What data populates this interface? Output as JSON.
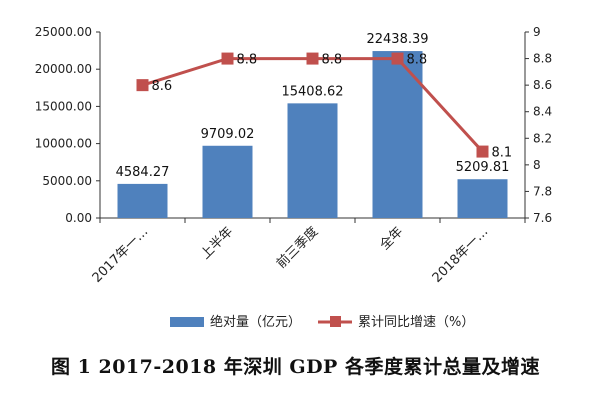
{
  "caption": "图 1   2017-2018 年深圳 GDP 各季度累计总量及增速",
  "chart_data": {
    "type": "bar+line",
    "categories": [
      "2017年一…",
      "上半年",
      "前三季度",
      "全年",
      "2018年一…"
    ],
    "series": [
      {
        "name": "绝对量（亿元）",
        "type": "bar",
        "axis": "left",
        "color": "#4f81bd",
        "values": [
          4584.27,
          9709.02,
          15408.62,
          22438.39,
          5209.81
        ],
        "labels": [
          "4584.27",
          "9709.02",
          "15408.62",
          "22438.39",
          "5209.81"
        ]
      },
      {
        "name": "累计同比增速（%）",
        "type": "line",
        "axis": "right",
        "color": "#c0504d",
        "values": [
          8.6,
          8.8,
          8.8,
          8.8,
          8.1
        ],
        "labels": [
          "8.6",
          "8.8",
          "8.8",
          "8.8",
          "8.1"
        ]
      }
    ],
    "y_left": {
      "min": 0,
      "max": 25000,
      "ticks": [
        "0.00",
        "5000.00",
        "10000.00",
        "15000.00",
        "20000.00",
        "25000.00"
      ]
    },
    "y_right": {
      "min": 7.6,
      "max": 9,
      "ticks": [
        "7.6",
        "7.8",
        "8",
        "8.2",
        "8.4",
        "8.6",
        "8.8",
        "9"
      ]
    },
    "legend_position": "bottom",
    "grid": false
  }
}
